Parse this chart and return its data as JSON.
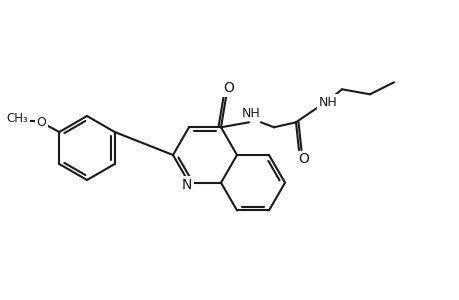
{
  "bg_color": "#ffffff",
  "line_color": "#1a1a1a",
  "lw": 1.5,
  "fs": 9.0,
  "figsize": [
    4.6,
    3.0
  ],
  "dpi": 100,
  "xlim": [
    0,
    460
  ],
  "ylim": [
    0,
    300
  ]
}
